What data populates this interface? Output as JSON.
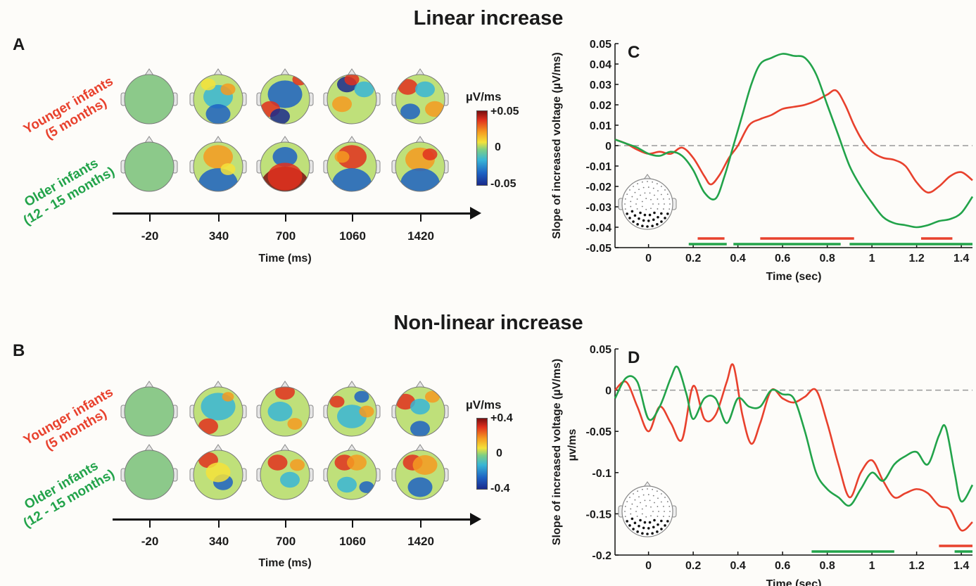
{
  "sections": {
    "linear": {
      "title": "Linear increase"
    },
    "nonlinear": {
      "title": "Non-linear increase"
    }
  },
  "panels": {
    "A": "A",
    "B": "B",
    "C": "C",
    "D": "D"
  },
  "groups": {
    "younger": {
      "line1": "Younger infants",
      "line2": "(5 months)",
      "color": "#e8412d"
    },
    "older": {
      "line1": "Older infants",
      "line2": "(12 - 15 months)",
      "color": "#22a34a"
    }
  },
  "topomaps": {
    "time_labels": [
      "-20",
      "340",
      "700",
      "1060",
      "1420"
    ],
    "axis_label": "Time (ms)",
    "linear_colorbar": {
      "title": "µV/ms",
      "max": "+0.05",
      "mid": "0",
      "min": "-0.05"
    },
    "nonlinear_colorbar": {
      "title": "µV/ms",
      "max": "+0.4",
      "mid": "0",
      "min": "-0.4"
    }
  },
  "chart_data": [
    {
      "panel": "C",
      "type": "line",
      "xlabel": "Time (sec)",
      "ylabel": "Slope of increased voltage (µV/ms)",
      "xlim": [
        -0.15,
        1.45
      ],
      "ylim": [
        -0.05,
        0.05
      ],
      "xticks": [
        0,
        0.2,
        0.4,
        0.6,
        0.8,
        1,
        1.2,
        1.4
      ],
      "xtick_labels": [
        "0",
        "0.2",
        "0.4",
        "0.6",
        "0.8",
        "1",
        "1.2",
        "1.4"
      ],
      "yticks": [
        0.05,
        0.04,
        0.03,
        0.02,
        0.01,
        0,
        -0.01,
        -0.02,
        -0.03,
        -0.04,
        -0.05
      ],
      "ytick_labels": [
        "0.05",
        "0.04",
        "0.03",
        "0.02",
        "0.01",
        "0",
        "-0.01",
        "-0.02",
        "-0.03",
        "-0.04",
        "-0.05"
      ],
      "zero_line": true,
      "series": [
        {
          "color": "#e8412d",
          "x": [
            -0.15,
            -0.1,
            -0.05,
            0,
            0.05,
            0.1,
            0.15,
            0.2,
            0.25,
            0.28,
            0.32,
            0.36,
            0.4,
            0.45,
            0.5,
            0.55,
            0.6,
            0.65,
            0.7,
            0.75,
            0.8,
            0.84,
            0.88,
            0.92,
            0.96,
            1,
            1.05,
            1.1,
            1.15,
            1.2,
            1.25,
            1.3,
            1.35,
            1.4,
            1.45
          ],
          "y": [
            0.003,
            0.001,
            -0.002,
            -0.004,
            -0.003,
            -0.004,
            -0.001,
            -0.006,
            -0.015,
            -0.019,
            -0.014,
            -0.006,
            0.0,
            0.01,
            0.013,
            0.015,
            0.018,
            0.019,
            0.02,
            0.022,
            0.025,
            0.027,
            0.02,
            0.01,
            0.002,
            -0.003,
            -0.006,
            -0.007,
            -0.01,
            -0.018,
            -0.023,
            -0.02,
            -0.015,
            -0.013,
            -0.017
          ]
        },
        {
          "color": "#22a34a",
          "x": [
            -0.15,
            -0.1,
            -0.05,
            0,
            0.05,
            0.1,
            0.15,
            0.2,
            0.25,
            0.3,
            0.34,
            0.38,
            0.42,
            0.46,
            0.5,
            0.55,
            0.6,
            0.65,
            0.7,
            0.75,
            0.8,
            0.85,
            0.9,
            0.95,
            1,
            1.05,
            1.1,
            1.15,
            1.2,
            1.25,
            1.3,
            1.35,
            1.4,
            1.45
          ],
          "y": [
            0.003,
            0.001,
            -0.001,
            -0.004,
            -0.005,
            -0.003,
            -0.005,
            -0.012,
            -0.023,
            -0.026,
            -0.015,
            0.0,
            0.015,
            0.03,
            0.04,
            0.043,
            0.045,
            0.044,
            0.043,
            0.035,
            0.02,
            0.005,
            -0.01,
            -0.02,
            -0.028,
            -0.035,
            -0.038,
            -0.039,
            -0.04,
            -0.039,
            -0.037,
            -0.036,
            -0.033,
            -0.025
          ]
        }
      ],
      "significance_bars": {
        "red": [
          [
            0.22,
            0.34
          ],
          [
            0.5,
            0.92
          ],
          [
            1.22,
            1.36
          ]
        ],
        "green": [
          [
            0.18,
            0.35
          ],
          [
            0.38,
            0.86
          ],
          [
            0.9,
            1.45
          ]
        ]
      }
    },
    {
      "panel": "D",
      "type": "line",
      "xlabel": "Time (sec)",
      "ylabel": "Slope of increased voltage (µV/ms)",
      "ylabel2": "µv/ms",
      "xlim": [
        -0.15,
        1.45
      ],
      "ylim": [
        -0.2,
        0.05
      ],
      "xticks": [
        0,
        0.2,
        0.4,
        0.6,
        0.8,
        1,
        1.2,
        1.4
      ],
      "xtick_labels": [
        "0",
        "0.2",
        "0.4",
        "0.6",
        "0.8",
        "1",
        "1.2",
        "1.4"
      ],
      "yticks": [
        0.05,
        0,
        -0.05,
        -0.1,
        -0.15,
        -0.2
      ],
      "ytick_labels": [
        "0.05",
        "0",
        "-0.05",
        "-0.1",
        "-0.15",
        "-0.2"
      ],
      "zero_line": true,
      "series": [
        {
          "color": "#e8412d",
          "x": [
            -0.15,
            -0.1,
            -0.05,
            0,
            0.05,
            0.1,
            0.15,
            0.2,
            0.25,
            0.3,
            0.35,
            0.38,
            0.42,
            0.46,
            0.5,
            0.55,
            0.6,
            0.65,
            0.7,
            0.75,
            0.8,
            0.85,
            0.9,
            0.95,
            1,
            1.05,
            1.1,
            1.15,
            1.2,
            1.25,
            1.3,
            1.35,
            1.4,
            1.45
          ],
          "y": [
            0.0,
            0.01,
            -0.02,
            -0.05,
            -0.02,
            -0.04,
            -0.06,
            0.005,
            -0.035,
            -0.03,
            0.01,
            0.03,
            -0.03,
            -0.065,
            -0.04,
            0.0,
            -0.01,
            -0.015,
            -0.008,
            0.0,
            -0.04,
            -0.09,
            -0.13,
            -0.1,
            -0.085,
            -0.11,
            -0.13,
            -0.125,
            -0.12,
            -0.125,
            -0.14,
            -0.145,
            -0.17,
            -0.16
          ]
        },
        {
          "color": "#22a34a",
          "x": [
            -0.15,
            -0.1,
            -0.05,
            0,
            0.05,
            0.1,
            0.13,
            0.17,
            0.2,
            0.25,
            0.3,
            0.35,
            0.4,
            0.45,
            0.5,
            0.55,
            0.6,
            0.65,
            0.7,
            0.75,
            0.8,
            0.85,
            0.9,
            0.95,
            1,
            1.05,
            1.1,
            1.15,
            1.2,
            1.25,
            1.3,
            1.33,
            1.37,
            1.4,
            1.45
          ],
          "y": [
            -0.01,
            0.015,
            0.01,
            -0.035,
            -0.02,
            0.015,
            0.028,
            -0.005,
            -0.035,
            -0.01,
            -0.01,
            -0.04,
            -0.01,
            -0.02,
            -0.02,
            0.0,
            -0.005,
            -0.01,
            -0.05,
            -0.1,
            -0.12,
            -0.13,
            -0.14,
            -0.12,
            -0.1,
            -0.11,
            -0.09,
            -0.08,
            -0.075,
            -0.09,
            -0.055,
            -0.045,
            -0.1,
            -0.135,
            -0.115
          ]
        }
      ],
      "significance_bars": {
        "red": [
          [
            1.3,
            1.45
          ]
        ],
        "green": [
          [
            0.73,
            1.1
          ],
          [
            1.37,
            1.45
          ]
        ]
      }
    }
  ]
}
